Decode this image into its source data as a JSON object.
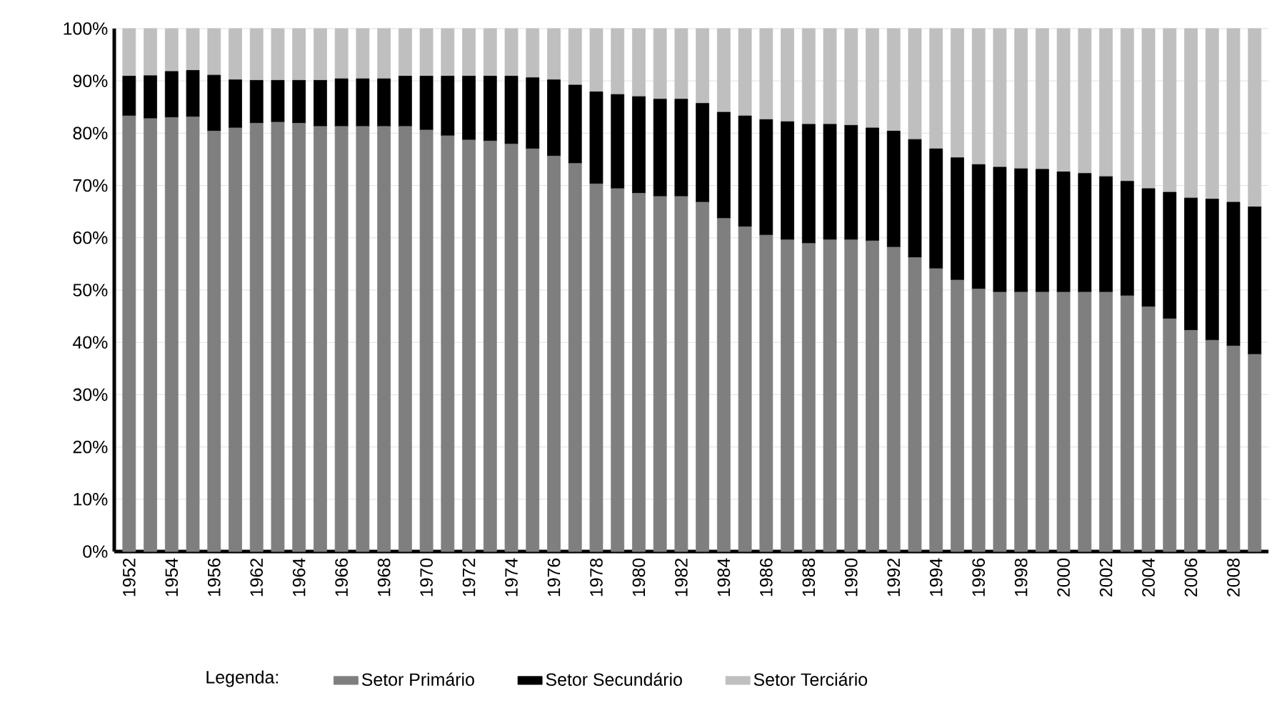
{
  "chart_data": {
    "type": "bar",
    "stacked": true,
    "legend_title": "Legenda:",
    "legend": "bottom",
    "grid": "y",
    "categories": [
      "1952",
      null,
      "1954",
      null,
      "1956",
      null,
      "1962",
      null,
      "1964",
      null,
      "1966",
      null,
      "1968",
      null,
      "1970",
      null,
      "1972",
      null,
      "1974",
      null,
      "1976",
      null,
      "1978",
      null,
      "1980",
      null,
      "1982",
      null,
      "1984",
      null,
      "1986",
      null,
      "1988",
      null,
      "1990",
      null,
      "1992",
      null,
      "1994",
      null,
      "1996",
      null,
      "1998",
      null,
      "2000",
      null,
      "2002",
      null,
      "2004",
      null,
      "2006",
      null,
      "2008",
      null
    ],
    "ylim": [
      0,
      100
    ],
    "yticks": [
      {
        "value": 0,
        "label": "0%"
      },
      {
        "value": 10,
        "label": "10%"
      },
      {
        "value": 20,
        "label": "20%"
      },
      {
        "value": 30,
        "label": "30%"
      },
      {
        "value": 40,
        "label": "40%"
      },
      {
        "value": 50,
        "label": "50%"
      },
      {
        "value": 60,
        "label": "60%"
      },
      {
        "value": 70,
        "label": "70%"
      },
      {
        "value": 80,
        "label": "80%"
      },
      {
        "value": 90,
        "label": "90%"
      },
      {
        "value": 100,
        "label": "100%"
      }
    ],
    "series": [
      {
        "name": "Setor Primário",
        "color": "#7f7f7f",
        "values": [
          83.3,
          82.8,
          83.0,
          83.1,
          80.4,
          81.0,
          81.9,
          82.1,
          81.9,
          81.3,
          81.3,
          81.3,
          81.3,
          81.3,
          80.6,
          79.5,
          78.7,
          78.5,
          77.9,
          77.0,
          75.6,
          74.2,
          70.3,
          69.4,
          68.5,
          67.9,
          67.9,
          66.8,
          63.7,
          62.1,
          60.5,
          59.6,
          58.9,
          59.6,
          59.6,
          59.4,
          58.2,
          56.2,
          54.1,
          51.9,
          50.2,
          49.6,
          49.6,
          49.6,
          49.6,
          49.6,
          49.6,
          48.9,
          46.8,
          44.5,
          42.3,
          40.4,
          39.3,
          37.7
        ]
      },
      {
        "name": "Setor Secundário",
        "color": "#000000",
        "values": [
          7.6,
          8.2,
          8.8,
          8.9,
          10.7,
          9.2,
          8.2,
          8.0,
          8.2,
          8.8,
          9.1,
          9.1,
          9.1,
          9.6,
          10.3,
          11.4,
          12.2,
          12.4,
          13.0,
          13.6,
          14.6,
          15.0,
          17.6,
          18.0,
          18.5,
          18.6,
          18.6,
          18.9,
          20.3,
          21.2,
          22.1,
          22.6,
          22.8,
          22.1,
          21.9,
          21.6,
          22.2,
          22.6,
          22.9,
          23.4,
          23.8,
          23.9,
          23.6,
          23.5,
          23.0,
          22.7,
          22.1,
          21.9,
          22.6,
          24.2,
          25.3,
          27.0,
          27.5,
          28.2
        ]
      },
      {
        "name": "Setor Terciário",
        "color": "#bfbfbf",
        "values": [
          9.1,
          9.0,
          8.2,
          8.0,
          8.9,
          9.8,
          9.9,
          9.9,
          9.9,
          9.9,
          9.6,
          9.6,
          9.6,
          9.1,
          9.1,
          9.1,
          9.1,
          9.1,
          9.1,
          9.4,
          9.8,
          10.8,
          12.1,
          12.6,
          13.0,
          13.5,
          13.5,
          14.3,
          16.0,
          16.7,
          17.4,
          17.8,
          18.3,
          18.3,
          18.5,
          19.0,
          19.6,
          21.2,
          23.0,
          24.7,
          26.0,
          26.5,
          26.8,
          26.9,
          27.4,
          27.7,
          28.3,
          29.2,
          30.6,
          31.3,
          32.4,
          32.6,
          33.2,
          34.1
        ]
      }
    ]
  }
}
